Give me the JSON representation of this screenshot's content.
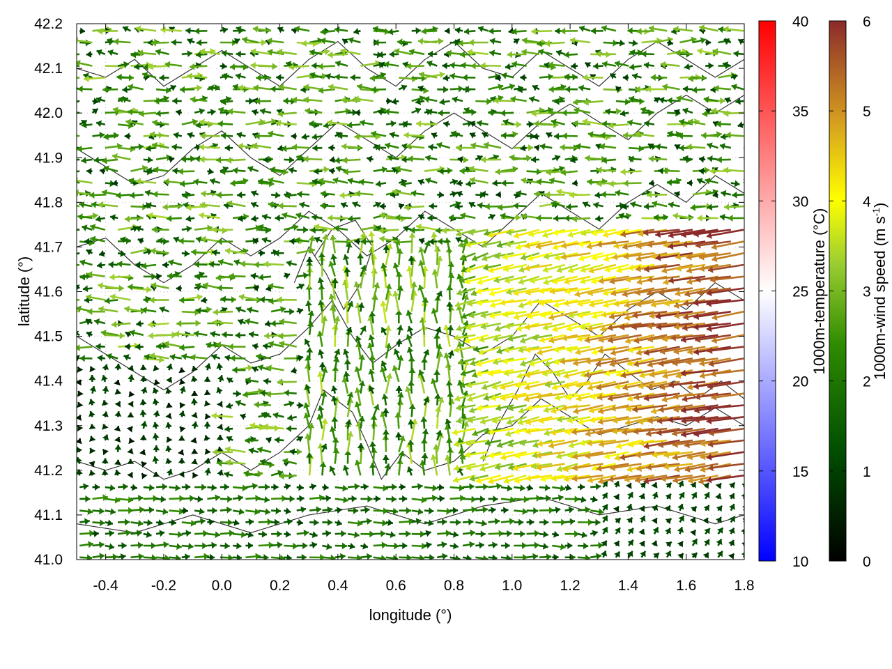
{
  "chart_data": {
    "type": "vector-field",
    "xlabel": "longitude (°)",
    "ylabel": "latitude (°)",
    "xlim": [
      -0.5,
      1.8
    ],
    "ylim": [
      41.0,
      42.2
    ],
    "x_ticks": [
      "-0.4",
      "-0.2",
      "0.0",
      "0.2",
      "0.4",
      "0.6",
      "0.8",
      "1.0",
      "1.2",
      "1.4",
      "1.6",
      "1.8"
    ],
    "y_ticks": [
      "41.0",
      "41.1",
      "41.2",
      "41.3",
      "41.4",
      "41.5",
      "41.6",
      "41.7",
      "41.8",
      "41.9",
      "42.0",
      "42.1",
      "42.2"
    ],
    "grid": true,
    "temperature_colorbar": {
      "label": "1000m-temperature (°C)",
      "range": [
        10,
        40
      ],
      "ticks": [
        "10",
        "15",
        "20",
        "25",
        "30",
        "35",
        "40"
      ],
      "colors": [
        "#0000ff",
        "#ffffff",
        "#ff0000"
      ]
    },
    "wind_colorbar": {
      "label_main": "1000m-wind speed (m s",
      "label_sup": "-1",
      "label_end": ")",
      "range": [
        0,
        6
      ],
      "ticks": [
        "0",
        "1",
        "2",
        "3",
        "4",
        "5",
        "6"
      ],
      "colors": [
        "#000000",
        "#006400",
        "#7fbf00",
        "#ffff00",
        "#d4a020",
        "#8b2a2a"
      ]
    },
    "contours": [
      [
        [
          -0.5,
          41.22
        ],
        [
          -0.4,
          41.2
        ],
        [
          -0.3,
          41.22
        ],
        [
          -0.2,
          41.18
        ],
        [
          -0.1,
          41.2
        ],
        [
          0.0,
          41.24
        ],
        [
          0.1,
          41.2
        ],
        [
          0.2,
          41.24
        ],
        [
          0.3,
          41.3
        ],
        [
          0.35,
          41.38
        ],
        [
          0.45,
          41.33
        ],
        [
          0.5,
          41.26
        ],
        [
          0.55,
          41.18
        ],
        [
          0.62,
          41.24
        ],
        [
          0.7,
          41.2
        ],
        [
          0.8,
          41.22
        ],
        [
          0.9,
          41.28
        ],
        [
          1.0,
          41.3
        ],
        [
          1.1,
          41.36
        ],
        [
          1.2,
          41.32
        ],
        [
          1.3,
          41.28
        ],
        [
          1.4,
          41.3
        ],
        [
          1.5,
          41.32
        ],
        [
          1.6,
          41.3
        ],
        [
          1.7,
          41.34
        ],
        [
          1.8,
          41.3
        ]
      ],
      [
        [
          -0.5,
          41.5
        ],
        [
          -0.4,
          41.46
        ],
        [
          -0.3,
          41.42
        ],
        [
          -0.2,
          41.38
        ],
        [
          -0.1,
          41.42
        ],
        [
          0.0,
          41.48
        ],
        [
          0.1,
          41.44
        ],
        [
          0.2,
          41.46
        ],
        [
          0.3,
          41.52
        ],
        [
          0.38,
          41.58
        ],
        [
          0.45,
          41.5
        ],
        [
          0.52,
          41.44
        ],
        [
          0.6,
          41.48
        ],
        [
          0.7,
          41.52
        ],
        [
          0.8,
          41.5
        ],
        [
          0.9,
          41.46
        ],
        [
          1.0,
          41.5
        ],
        [
          1.1,
          41.58
        ],
        [
          1.2,
          41.54
        ],
        [
          1.3,
          41.5
        ],
        [
          1.4,
          41.56
        ],
        [
          1.5,
          41.6
        ],
        [
          1.6,
          41.56
        ],
        [
          1.7,
          41.62
        ],
        [
          1.8,
          41.58
        ]
      ],
      [
        [
          -0.5,
          41.7
        ],
        [
          -0.4,
          41.72
        ],
        [
          -0.3,
          41.66
        ],
        [
          -0.2,
          41.62
        ],
        [
          -0.1,
          41.66
        ],
        [
          0.0,
          41.72
        ],
        [
          0.1,
          41.68
        ],
        [
          0.2,
          41.72
        ],
        [
          0.3,
          41.78
        ],
        [
          0.4,
          41.74
        ],
        [
          0.5,
          41.68
        ],
        [
          0.6,
          41.72
        ],
        [
          0.7,
          41.78
        ],
        [
          0.8,
          41.74
        ],
        [
          0.9,
          41.7
        ],
        [
          1.0,
          41.76
        ],
        [
          1.1,
          41.82
        ],
        [
          1.2,
          41.78
        ],
        [
          1.3,
          41.74
        ],
        [
          1.4,
          41.8
        ],
        [
          1.5,
          41.84
        ],
        [
          1.6,
          41.8
        ],
        [
          1.7,
          41.86
        ],
        [
          1.8,
          41.82
        ]
      ],
      [
        [
          -0.5,
          41.92
        ],
        [
          -0.4,
          41.88
        ],
        [
          -0.3,
          41.84
        ],
        [
          -0.2,
          41.86
        ],
        [
          -0.1,
          41.92
        ],
        [
          0.0,
          41.96
        ],
        [
          0.1,
          41.9
        ],
        [
          0.2,
          41.86
        ],
        [
          0.3,
          41.92
        ],
        [
          0.4,
          41.98
        ],
        [
          0.5,
          41.94
        ],
        [
          0.6,
          41.9
        ],
        [
          0.7,
          41.96
        ],
        [
          0.8,
          42.0
        ],
        [
          0.9,
          41.96
        ],
        [
          1.0,
          41.92
        ],
        [
          1.1,
          41.98
        ],
        [
          1.2,
          42.02
        ],
        [
          1.3,
          41.98
        ],
        [
          1.4,
          41.94
        ],
        [
          1.5,
          42.0
        ],
        [
          1.6,
          42.04
        ],
        [
          1.7,
          42.0
        ],
        [
          1.8,
          42.04
        ]
      ],
      [
        [
          -0.5,
          42.1
        ],
        [
          -0.4,
          42.08
        ],
        [
          -0.3,
          42.12
        ],
        [
          -0.2,
          42.06
        ],
        [
          -0.1,
          42.1
        ],
        [
          0.0,
          42.14
        ],
        [
          0.1,
          42.1
        ],
        [
          0.2,
          42.06
        ],
        [
          0.3,
          42.12
        ],
        [
          0.4,
          42.16
        ],
        [
          0.5,
          42.1
        ],
        [
          0.6,
          42.06
        ],
        [
          0.7,
          42.12
        ],
        [
          0.8,
          42.16
        ],
        [
          0.9,
          42.1
        ],
        [
          1.0,
          42.08
        ],
        [
          1.1,
          42.14
        ],
        [
          1.2,
          42.1
        ],
        [
          1.3,
          42.06
        ],
        [
          1.4,
          42.12
        ],
        [
          1.5,
          42.16
        ],
        [
          1.6,
          42.12
        ],
        [
          1.7,
          42.08
        ],
        [
          1.8,
          42.12
        ]
      ],
      [
        [
          -0.5,
          41.08
        ],
        [
          -0.3,
          41.06
        ],
        [
          -0.1,
          41.1
        ],
        [
          0.1,
          41.06
        ],
        [
          0.3,
          41.1
        ],
        [
          0.5,
          41.12
        ],
        [
          0.7,
          41.08
        ],
        [
          0.9,
          41.12
        ],
        [
          1.1,
          41.14
        ],
        [
          1.3,
          41.1
        ],
        [
          1.5,
          41.12
        ],
        [
          1.7,
          41.08
        ],
        [
          1.8,
          41.1
        ]
      ],
      [
        [
          0.25,
          41.62
        ],
        [
          0.3,
          41.7
        ],
        [
          0.36,
          41.64
        ],
        [
          0.42,
          41.56
        ],
        [
          0.48,
          41.62
        ],
        [
          0.52,
          41.7
        ],
        [
          0.46,
          41.76
        ],
        [
          0.38,
          41.74
        ],
        [
          0.32,
          41.68
        ]
      ],
      [
        [
          0.9,
          41.22
        ],
        [
          0.95,
          41.3
        ],
        [
          1.02,
          41.38
        ],
        [
          1.08,
          41.46
        ],
        [
          1.14,
          41.42
        ],
        [
          1.2,
          41.36
        ],
        [
          1.26,
          41.4
        ],
        [
          1.32,
          41.46
        ],
        [
          1.4,
          41.42
        ],
        [
          1.48,
          41.38
        ],
        [
          1.56,
          41.4
        ],
        [
          1.64,
          41.36
        ],
        [
          1.72,
          41.4
        ],
        [
          1.8,
          41.36
        ]
      ]
    ]
  }
}
